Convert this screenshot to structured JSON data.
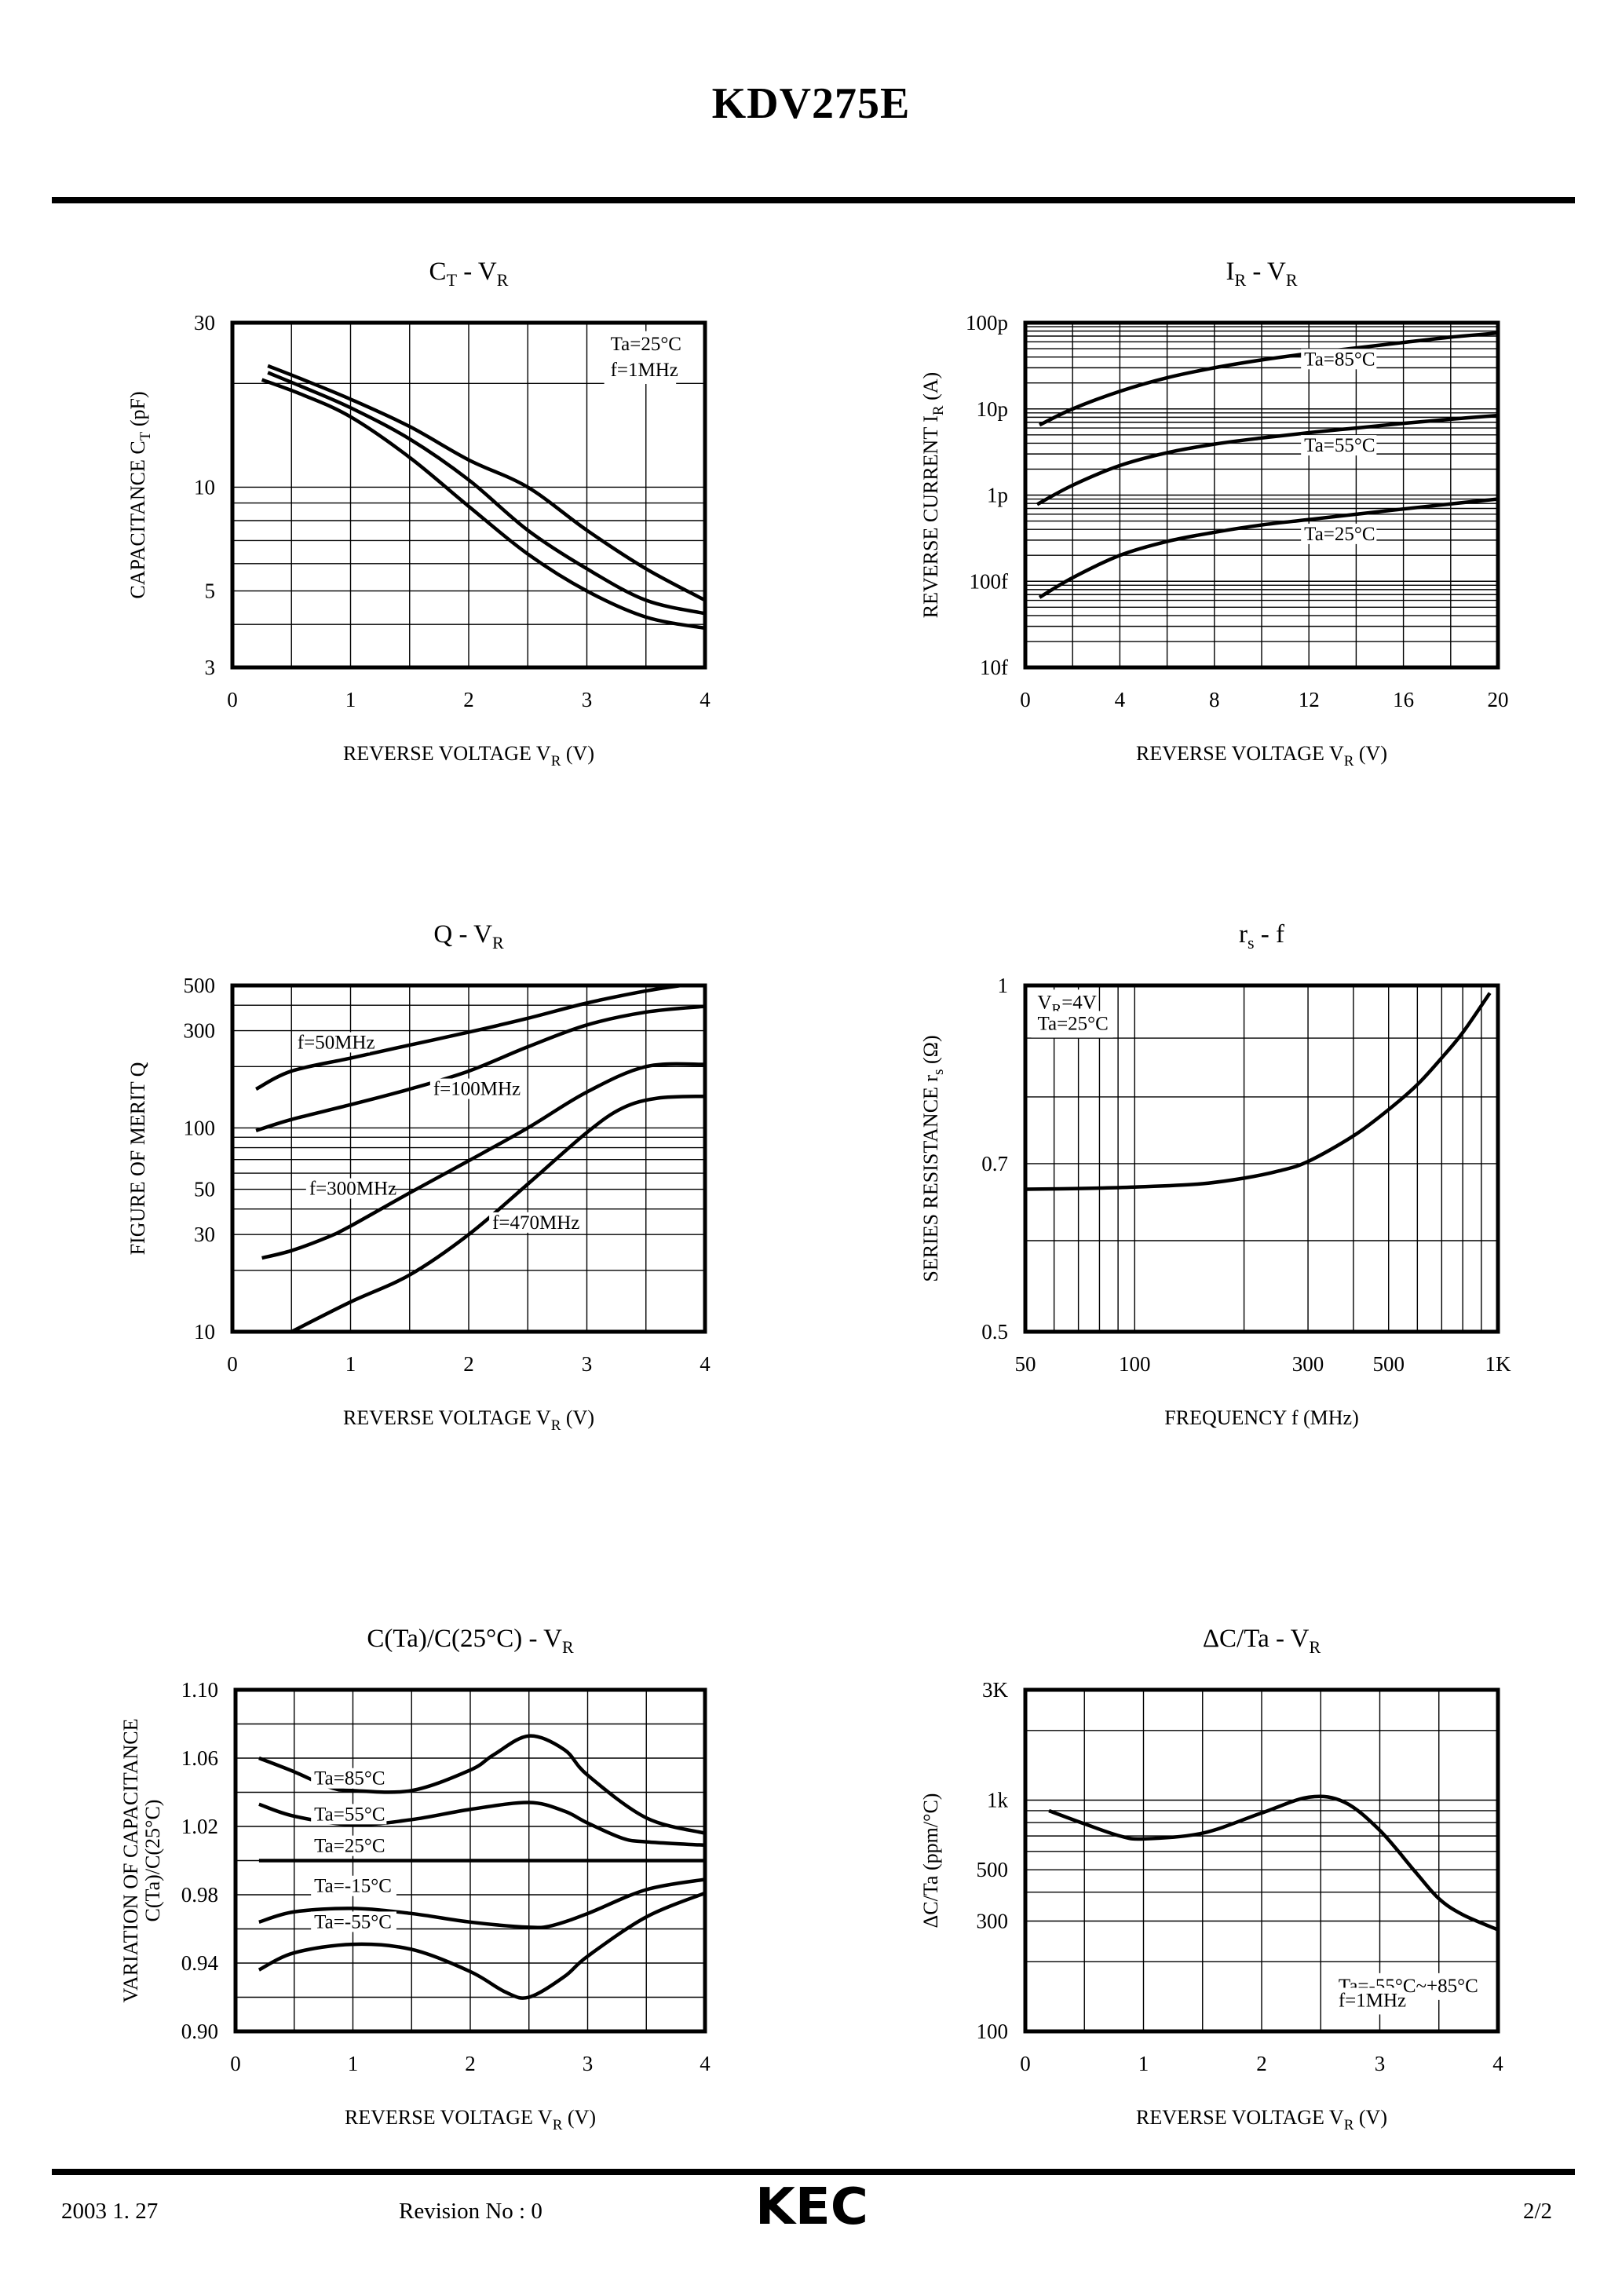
{
  "header": {
    "title": "KDV275E"
  },
  "footer": {
    "date": "2003 1. 27",
    "revision": "Revision No : 0",
    "logo_text": "KEC",
    "page": "2/2"
  },
  "chart_data": [
    {
      "id": "ct_vr",
      "type": "line",
      "title": "CT - VR",
      "title_parts": {
        "main": "C",
        "sub": "T",
        "sep": "-",
        "main2": "V",
        "sub2": "R"
      },
      "xlabel": "REVERSE VOLTAGE VR (V)",
      "xlabel_parts": {
        "text": "REVERSE VOLTAGE V",
        "sub": "R",
        "unit": "(V)"
      },
      "ylabel": "CAPACITANCE CT (pF)",
      "ylabel_parts": {
        "text": "CAPACITANCE C",
        "sub": "T",
        "unit": "(pF)"
      },
      "xscale": "linear",
      "yscale": "log",
      "xlim": [
        0,
        4
      ],
      "ylim": [
        3,
        30
      ],
      "xticks": [
        0,
        1,
        2,
        3,
        4
      ],
      "xtick_labels": [
        "0",
        "1",
        "2",
        "3",
        "4"
      ],
      "yticks": [
        3,
        5,
        10,
        30
      ],
      "ytick_labels": [
        "3",
        "5",
        "10",
        "30"
      ],
      "xgrid": [
        0.5,
        1,
        1.5,
        2,
        2.5,
        3,
        3.5
      ],
      "ygrid": [
        4,
        5,
        6,
        7,
        8,
        9,
        10,
        20
      ],
      "annotations": [
        {
          "text": "Ta=25°C",
          "x": 3.2,
          "y": 25
        },
        {
          "text": "f=1MHz",
          "x": 3.2,
          "y": 21
        }
      ],
      "series": [
        {
          "name": "upper",
          "x": [
            0.3,
            0.6,
            1.0,
            1.5,
            2.0,
            2.5,
            3.0,
            3.5,
            4.0
          ],
          "y": [
            22.5,
            20.5,
            18,
            15,
            12,
            10,
            7.5,
            5.8,
            4.7
          ]
        },
        {
          "name": "middle",
          "x": [
            0.3,
            0.6,
            1.0,
            1.5,
            2.0,
            2.5,
            3.0,
            3.5,
            4.0
          ],
          "y": [
            21.5,
            19.5,
            17,
            13.8,
            10.5,
            7.5,
            5.8,
            4.7,
            4.3
          ]
        },
        {
          "name": "lower",
          "x": [
            0.25,
            0.6,
            1.0,
            1.5,
            2.0,
            2.5,
            3.0,
            3.5,
            4.0
          ],
          "y": [
            20.5,
            18.5,
            16,
            12.2,
            8.8,
            6.4,
            5.0,
            4.2,
            3.9
          ]
        }
      ]
    },
    {
      "id": "ir_vr",
      "type": "line",
      "title": "IR - VR",
      "title_parts": {
        "main": "I",
        "sub": "R",
        "sep": "-",
        "main2": "V",
        "sub2": "R"
      },
      "xlabel": "REVERSE VOLTAGE VR (V)",
      "xlabel_parts": {
        "text": "REVERSE VOLTAGE V",
        "sub": "R",
        "unit": "(V)"
      },
      "ylabel": "REVERSE CURRENT IR (A)",
      "ylabel_parts": {
        "text": "REVERSE CURRENT I",
        "sub": "R",
        "unit": "(A)"
      },
      "xscale": "linear",
      "yscale": "log",
      "xlim": [
        0,
        20
      ],
      "ylim": [
        1e-14,
        1e-10
      ],
      "xticks": [
        0,
        4,
        8,
        12,
        16,
        20
      ],
      "xtick_labels": [
        "0",
        "4",
        "8",
        "12",
        "16",
        "20"
      ],
      "yticks": [
        1e-14,
        1e-13,
        1e-12,
        1e-11,
        1e-10
      ],
      "ytick_labels": [
        "10f",
        "100f",
        "1p",
        "10p",
        "100p"
      ],
      "xgrid": [
        2,
        4,
        6,
        8,
        10,
        12,
        14,
        16,
        18
      ],
      "ygrid_decades": true,
      "annotations": [],
      "series": [
        {
          "name": "Ta=85°C",
          "label_at": [
            11.8,
            3.2e-11
          ],
          "x": [
            0.6,
            2,
            4,
            6,
            8,
            10,
            12,
            14,
            16,
            18,
            20
          ],
          "y": [
            6.5e-12,
            1e-11,
            1.6e-11,
            2.3e-11,
            3e-11,
            3.7e-11,
            4.4e-11,
            5.1e-11,
            5.9e-11,
            6.8e-11,
            7.6e-11
          ]
        },
        {
          "name": "Ta=55°C",
          "label_at": [
            11.8,
            3.2e-12
          ],
          "x": [
            0.5,
            2,
            4,
            6,
            8,
            10,
            12,
            14,
            16,
            18,
            20
          ],
          "y": [
            7.8e-13,
            1.3e-12,
            2.2e-12,
            3.1e-12,
            3.9e-12,
            4.6e-12,
            5.3e-12,
            6e-12,
            6.8e-12,
            7.6e-12,
            8.4e-12
          ]
        },
        {
          "name": "Ta=25°C",
          "label_at": [
            11.8,
            3e-13
          ],
          "x": [
            0.6,
            2,
            4,
            6,
            8,
            10,
            12,
            14,
            16,
            18,
            20
          ],
          "y": [
            6.5e-14,
            1.1e-13,
            2e-13,
            2.9e-13,
            3.7e-13,
            4.5e-13,
            5.2e-13,
            6e-13,
            6.9e-13,
            7.9e-13,
            9e-13
          ]
        }
      ]
    },
    {
      "id": "q_vr",
      "type": "line",
      "title": "Q - VR",
      "title_parts": {
        "main": "Q",
        "sub": "",
        "sep": "-",
        "main2": "V",
        "sub2": "R"
      },
      "xlabel": "REVERSE VOLTAGE VR (V)",
      "xlabel_parts": {
        "text": "REVERSE VOLTAGE V",
        "sub": "R",
        "unit": "(V)"
      },
      "ylabel": "FIGURE OF MERIT Q",
      "ylabel_parts": {
        "text": "FIGURE OF MERIT Q",
        "sub": "",
        "unit": ""
      },
      "xscale": "linear",
      "yscale": "log",
      "xlim": [
        0,
        4
      ],
      "ylim": [
        10,
        500
      ],
      "xticks": [
        0,
        1,
        2,
        3,
        4
      ],
      "xtick_labels": [
        "0",
        "1",
        "2",
        "3",
        "4"
      ],
      "yticks": [
        10,
        30,
        50,
        100,
        300,
        500
      ],
      "ytick_labels": [
        "10",
        "30",
        "50",
        "100",
        "300",
        "500"
      ],
      "xgrid": [
        0.5,
        1,
        1.5,
        2,
        2.5,
        3,
        3.5
      ],
      "ygrid": [
        20,
        30,
        40,
        50,
        60,
        70,
        80,
        90,
        100,
        200,
        300,
        400
      ],
      "annotations": [],
      "series": [
        {
          "name": "f=50MHz",
          "label_at": [
            0.55,
            245
          ],
          "x": [
            0.2,
            0.5,
            1.0,
            1.5,
            2.0,
            2.5,
            3.0,
            3.5,
            3.8
          ],
          "y": [
            155,
            190,
            220,
            255,
            295,
            345,
            410,
            470,
            500
          ]
        },
        {
          "name": "f=100MHz",
          "label_at": [
            1.7,
            145
          ],
          "x": [
            0.2,
            0.5,
            1.0,
            1.5,
            2.0,
            2.5,
            3.0,
            3.5,
            4.0
          ],
          "y": [
            97,
            110,
            130,
            155,
            190,
            250,
            320,
            370,
            395
          ]
        },
        {
          "name": "f=300MHz",
          "label_at": [
            0.65,
            47
          ],
          "x": [
            0.25,
            0.5,
            0.8,
            1.0,
            1.5,
            2.0,
            2.5,
            3.0,
            3.5,
            4.0
          ],
          "y": [
            23,
            25,
            29,
            33,
            48,
            69,
            100,
            150,
            200,
            205
          ]
        },
        {
          "name": "f=470MHz",
          "label_at": [
            2.2,
            32
          ],
          "x": [
            0.5,
            1.0,
            1.5,
            2.0,
            2.5,
            3.0,
            3.3,
            3.6,
            4.0
          ],
          "y": [
            10,
            14,
            19,
            30,
            53,
            95,
            125,
            140,
            143
          ]
        }
      ]
    },
    {
      "id": "rs_f",
      "type": "line",
      "title": "rs - f",
      "title_parts": {
        "main": "r",
        "sub": "s",
        "sep": "-",
        "main2": "f",
        "sub2": ""
      },
      "xlabel": "FREQUENCY f (MHz)",
      "xlabel_parts": {
        "text": "FREQUENCY f (MHz)",
        "sub": "",
        "unit": ""
      },
      "ylabel": "SERIES RESISTANCE rs (Ω)",
      "ylabel_parts": {
        "text": "SERIES RESISTANCE r",
        "sub": "s",
        "unit": "(Ω)"
      },
      "xscale": "log",
      "yscale": "log",
      "xlim": [
        50,
        1000
      ],
      "ylim": [
        0.5,
        1
      ],
      "xticks": [
        50,
        100,
        300,
        500,
        1000
      ],
      "xtick_labels": [
        "50",
        "100",
        "300",
        "500",
        "1K"
      ],
      "yticks": [
        0.5,
        0.7,
        1
      ],
      "ytick_labels": [
        "0.5",
        "0.7",
        "1"
      ],
      "xgrid": [
        60,
        70,
        80,
        90,
        100,
        200,
        300,
        400,
        500,
        600,
        700,
        800,
        900
      ],
      "ygrid": [
        0.6,
        0.7,
        0.8,
        0.9
      ],
      "annotations": [
        {
          "text": "VR=4V",
          "main": "V",
          "sub": "R",
          "rest": "=4V",
          "x": 54,
          "y": 0.955
        },
        {
          "text": "Ta=25°C",
          "x": 54,
          "y": 0.915
        }
      ],
      "series": [
        {
          "name": "VR=4V Ta=25°C",
          "x": [
            50,
            70,
            100,
            150,
            200,
            250,
            300,
            400,
            500,
            600,
            700,
            800,
            950
          ],
          "y": [
            0.665,
            0.666,
            0.668,
            0.672,
            0.68,
            0.69,
            0.703,
            0.74,
            0.78,
            0.82,
            0.865,
            0.91,
            0.985
          ]
        }
      ]
    },
    {
      "id": "cta_c25_vr",
      "type": "line",
      "title": "C(Ta)/C(25°C) - VR",
      "title_parts": {
        "main": "C(Ta)/C(25°C)",
        "sub": "",
        "sep": "-",
        "main2": "V",
        "sub2": "R"
      },
      "xlabel": "REVERSE VOLTAGE VR (V)",
      "xlabel_parts": {
        "text": "REVERSE VOLTAGE V",
        "sub": "R",
        "unit": "(V)"
      },
      "ylabel": "VARIATION OF CAPACITANCE C(Ta)/C(25°C)",
      "ylabel_parts": {
        "text": "VARIATION OF CAPACITANCE",
        "sub": "",
        "unit": "",
        "line2": "C(Ta)/C(25°C)"
      },
      "xscale": "linear",
      "yscale": "linear",
      "xlim": [
        0,
        4
      ],
      "ylim": [
        0.9,
        1.1
      ],
      "xticks": [
        0,
        1,
        2,
        3,
        4
      ],
      "xtick_labels": [
        "0",
        "1",
        "2",
        "3",
        "4"
      ],
      "yticks": [
        0.9,
        0.94,
        0.98,
        1.02,
        1.06,
        1.1
      ],
      "ytick_labels": [
        "0.90",
        "0.94",
        "0.98",
        "1.02",
        "1.06",
        "1.10"
      ],
      "xgrid": [
        0.5,
        1,
        1.5,
        2,
        2.5,
        3,
        3.5
      ],
      "ygrid": [
        0.92,
        0.94,
        0.96,
        0.98,
        1.0,
        1.02,
        1.04,
        1.06,
        1.08
      ],
      "annotations": [],
      "series": [
        {
          "name": "Ta=85°C",
          "label_at": [
            0.67,
            1.0445
          ],
          "x": [
            0.2,
            0.5,
            0.8,
            1.0,
            1.5,
            2.0,
            2.2,
            2.5,
            2.8,
            3.0,
            3.5,
            4.0
          ],
          "y": [
            1.06,
            1.052,
            1.043,
            1.041,
            1.041,
            1.053,
            1.062,
            1.073,
            1.065,
            1.05,
            1.025,
            1.016
          ]
        },
        {
          "name": "Ta=55°C",
          "label_at": [
            0.67,
            1.0235
          ],
          "x": [
            0.2,
            0.5,
            1.0,
            1.5,
            2.0,
            2.5,
            2.8,
            3.0,
            3.3,
            3.5,
            4.0
          ],
          "y": [
            1.033,
            1.026,
            1.021,
            1.024,
            1.03,
            1.034,
            1.029,
            1.022,
            1.013,
            1.011,
            1.009
          ]
        },
        {
          "name": "Ta=25°C",
          "label_at": [
            0.67,
            1.005
          ],
          "x": [
            0.2,
            4.0
          ],
          "y": [
            1.0,
            1.0
          ]
        },
        {
          "name": "Ta=-15°C",
          "label_at": [
            0.67,
            0.9815
          ],
          "x": [
            0.2,
            0.5,
            1.0,
            1.5,
            2.0,
            2.5,
            2.7,
            3.0,
            3.5,
            4.0
          ],
          "y": [
            0.964,
            0.97,
            0.972,
            0.969,
            0.964,
            0.961,
            0.962,
            0.969,
            0.983,
            0.989
          ]
        },
        {
          "name": "Ta=-55°C",
          "label_at": [
            0.67,
            0.9605
          ],
          "x": [
            0.2,
            0.5,
            1.0,
            1.5,
            2.0,
            2.3,
            2.5,
            2.8,
            3.0,
            3.5,
            4.0
          ],
          "y": [
            0.936,
            0.946,
            0.951,
            0.948,
            0.935,
            0.923,
            0.92,
            0.932,
            0.944,
            0.967,
            0.981
          ]
        }
      ]
    },
    {
      "id": "dc_ta_vr",
      "type": "line",
      "title": "ΔC/Ta - VR",
      "title_parts": {
        "main": "ΔC/Ta",
        "sub": "",
        "sep": "-",
        "main2": "V",
        "sub2": "R"
      },
      "xlabel": "REVERSE VOLTAGE VR (V)",
      "xlabel_parts": {
        "text": "REVERSE VOLTAGE V",
        "sub": "R",
        "unit": "(V)"
      },
      "ylabel": "ΔC/Ta (ppm/°C)",
      "ylabel_parts": {
        "text": "ΔC/Ta  (ppm/°C)",
        "sub": "",
        "unit": ""
      },
      "xscale": "linear",
      "yscale": "log",
      "xlim": [
        0,
        4
      ],
      "ylim": [
        100,
        3000
      ],
      "xticks": [
        0,
        1,
        2,
        3,
        4
      ],
      "xtick_labels": [
        "0",
        "1",
        "2",
        "3",
        "4"
      ],
      "yticks": [
        100,
        300,
        500,
        1000,
        3000
      ],
      "ytick_labels": [
        "100",
        "300",
        "500",
        "1k",
        "3K"
      ],
      "xgrid": [
        0.5,
        1,
        1.5,
        2,
        2.5,
        3,
        3.5
      ],
      "ygrid": [
        200,
        300,
        400,
        500,
        600,
        700,
        800,
        900,
        1000,
        2000
      ],
      "annotations": [
        {
          "text": "Ta=-55°C~+85°C",
          "x": 2.65,
          "y": 148
        },
        {
          "text": "f=1MHz",
          "x": 2.65,
          "y": 128
        }
      ],
      "series": [
        {
          "name": "Ta=-55°C~+85°C f=1MHz",
          "x": [
            0.2,
            0.5,
            0.8,
            1.0,
            1.5,
            2.0,
            2.4,
            2.7,
            3.0,
            3.3,
            3.5,
            3.7,
            4.0
          ],
          "y": [
            900,
            790,
            700,
            680,
            720,
            880,
            1030,
            980,
            740,
            490,
            375,
            320,
            275
          ]
        }
      ]
    }
  ]
}
